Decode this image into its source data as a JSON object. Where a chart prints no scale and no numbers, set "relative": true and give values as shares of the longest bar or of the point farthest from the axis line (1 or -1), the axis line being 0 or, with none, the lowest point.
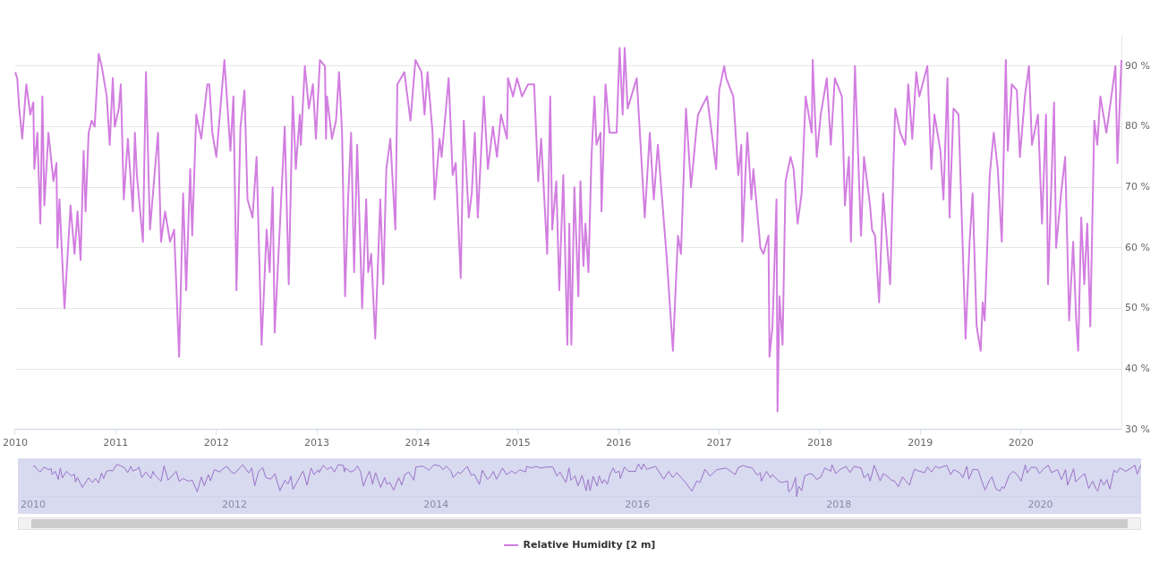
{
  "chart_data": [
    {
      "type": "line",
      "xlim": [
        2010,
        2021
      ],
      "xticks": [
        2010,
        2011,
        2012,
        2013,
        2014,
        2015,
        2016,
        2017,
        2018,
        2019,
        2020
      ],
      "ylim": [
        30,
        95
      ],
      "yticks": [
        {
          "value": 30,
          "label": "30 %"
        },
        {
          "value": 40,
          "label": "40 %"
        },
        {
          "value": 50,
          "label": "50 %"
        },
        {
          "value": 60,
          "label": "60 %"
        },
        {
          "value": 70,
          "label": "70 %"
        },
        {
          "value": 80,
          "label": "80 %"
        },
        {
          "value": 90,
          "label": "90 %"
        }
      ],
      "grid": "y",
      "legend": "bottom",
      "x": [
        2010.0,
        2010.02,
        2010.04,
        2010.07,
        2010.11,
        2010.15,
        2010.18,
        2010.19,
        2010.22,
        2010.25,
        2010.27,
        2010.29,
        2010.33,
        2010.38,
        2010.41,
        2010.42,
        2010.44,
        2010.49,
        2010.55,
        2010.59,
        2010.62,
        2010.65,
        2010.68,
        2010.7,
        2010.73,
        2010.76,
        2010.79,
        2010.83,
        2010.86,
        2010.91,
        2010.94,
        2010.97,
        2010.99,
        2011.03,
        2011.05,
        2011.08,
        2011.12,
        2011.17,
        2011.19,
        2011.21,
        2011.27,
        2011.3,
        2011.34,
        2011.42,
        2011.45,
        2011.49,
        2011.54,
        2011.58,
        2011.63,
        2011.67,
        2011.7,
        2011.74,
        2011.76,
        2011.8,
        2011.85,
        2011.91,
        2011.93,
        2011.96,
        2012.0,
        2012.08,
        2012.14,
        2012.17,
        2012.2,
        2012.24,
        2012.28,
        2012.31,
        2012.36,
        2012.4,
        2012.45,
        2012.5,
        2012.53,
        2012.56,
        2012.58,
        2012.68,
        2012.72,
        2012.76,
        2012.79,
        2012.83,
        2012.84,
        2012.88,
        2012.92,
        2012.96,
        2012.99,
        2013.03,
        2013.08,
        2013.09,
        2013.1,
        2013.15,
        2013.19,
        2013.22,
        2013.25,
        2013.28,
        2013.31,
        2013.34,
        2013.37,
        2013.4,
        2013.45,
        2013.49,
        2013.51,
        2013.54,
        2013.58,
        2013.63,
        2013.66,
        2013.69,
        2013.73,
        2013.78,
        2013.8,
        2013.87,
        2013.93,
        2013.98,
        2014.04,
        2014.07,
        2014.1,
        2014.15,
        2014.17,
        2014.22,
        2014.24,
        2014.31,
        2014.35,
        2014.38,
        2014.43,
        2014.46,
        2014.51,
        2014.54,
        2014.57,
        2014.6,
        2014.66,
        2014.7,
        2014.75,
        2014.79,
        2014.83,
        2014.89,
        2014.9,
        2014.95,
        2014.99,
        2015.04,
        2015.1,
        2015.16,
        2015.2,
        2015.23,
        2015.29,
        2015.32,
        2015.34,
        2015.38,
        2015.41,
        2015.45,
        2015.49,
        2015.51,
        2015.53,
        2015.56,
        2015.6,
        2015.62,
        2015.65,
        2015.67,
        2015.7,
        2015.73,
        2015.76,
        2015.78,
        2015.82,
        2015.83,
        2015.87,
        2015.91,
        2015.98,
        2016.01,
        2016.04,
        2016.06,
        2016.09,
        2016.18,
        2016.26,
        2016.31,
        2016.35,
        2016.39,
        2016.48,
        2016.54,
        2016.59,
        2016.62,
        2016.67,
        2016.72,
        2016.77,
        2016.79,
        2016.88,
        2016.97,
        2017.0,
        2017.05,
        2017.07,
        2017.14,
        2017.19,
        2017.22,
        2017.23,
        2017.28,
        2017.32,
        2017.34,
        2017.41,
        2017.44,
        2017.49,
        2017.5,
        2017.53,
        2017.57,
        2017.58,
        2017.6,
        2017.63,
        2017.66,
        2017.71,
        2017.74,
        2017.78,
        2017.82,
        2017.86,
        2017.92,
        2017.93,
        2017.97,
        2018.01,
        2018.07,
        2018.11,
        2018.15,
        2018.22,
        2018.25,
        2018.29,
        2018.31,
        2018.35,
        2018.41,
        2018.44,
        2018.5,
        2018.52,
        2018.55,
        2018.59,
        2018.63,
        2018.7,
        2018.73,
        2018.75,
        2018.8,
        2018.85,
        2018.88,
        2018.92,
        2018.96,
        2018.99,
        2019.07,
        2019.11,
        2019.14,
        2019.2,
        2019.23,
        2019.27,
        2019.29,
        2019.33,
        2019.38,
        2019.45,
        2019.49,
        2019.52,
        2019.56,
        2019.6,
        2019.62,
        2019.64,
        2019.69,
        2019.73,
        2019.77,
        2019.81,
        2019.85,
        2019.87,
        2019.91,
        2019.96,
        2019.99,
        2020.04,
        2020.08,
        2020.11,
        2020.17,
        2020.21,
        2020.25,
        2020.27,
        2020.33,
        2020.35,
        2020.4,
        2020.44,
        2020.48,
        2020.52,
        2020.55,
        2020.57,
        2020.6,
        2020.63,
        2020.66,
        2020.69,
        2020.73,
        2020.76,
        2020.79,
        2020.85,
        2020.9,
        2020.94,
        2020.96,
        2021.0
      ],
      "series": [
        {
          "name": "Relative Humidity [2 m]",
          "color": "#d27ee0",
          "values": [
            89,
            88,
            83,
            78,
            87,
            82,
            84,
            73,
            79,
            64,
            85,
            67,
            79,
            71,
            74,
            60,
            68,
            50,
            67,
            59,
            66,
            58,
            76,
            66,
            79,
            81,
            80,
            92,
            90,
            85,
            77,
            88,
            80,
            83,
            87,
            68,
            78,
            66,
            79,
            72,
            61,
            89,
            63,
            79,
            61,
            66,
            61,
            63,
            42,
            69,
            53,
            73,
            62,
            82,
            78,
            87,
            87,
            79,
            75,
            91,
            76,
            85,
            53,
            80,
            86,
            68,
            65,
            75,
            44,
            63,
            56,
            70,
            46,
            80,
            54,
            85,
            73,
            82,
            77,
            90,
            83,
            87,
            78,
            91,
            90,
            78,
            85,
            78,
            81,
            89,
            79,
            52,
            68,
            79,
            56,
            77,
            50,
            68,
            56,
            59,
            45,
            68,
            54,
            73,
            78,
            63,
            87,
            89,
            81,
            91,
            89,
            82,
            89,
            79,
            68,
            78,
            75,
            88,
            72,
            74,
            55,
            81,
            65,
            69,
            79,
            65,
            85,
            73,
            80,
            75,
            82,
            78,
            88,
            85,
            88,
            85,
            87,
            87,
            71,
            78,
            59,
            85,
            63,
            71,
            53,
            72,
            44,
            64,
            44,
            70,
            52,
            71,
            57,
            64,
            56,
            75,
            85,
            77,
            79,
            66,
            87,
            79,
            79,
            93,
            82,
            93,
            83,
            88,
            65,
            79,
            68,
            77,
            58,
            43,
            62,
            59,
            83,
            70,
            79,
            82,
            85,
            73,
            86,
            90,
            88,
            85,
            72,
            77,
            61,
            79,
            68,
            73,
            60,
            59,
            62,
            42,
            47,
            68,
            33,
            52,
            44,
            71,
            75,
            73,
            64,
            69,
            85,
            79,
            91,
            75,
            82,
            88,
            77,
            88,
            85,
            67,
            75,
            61,
            90,
            62,
            75,
            67,
            63,
            62,
            51,
            69,
            54,
            72,
            83,
            79,
            77,
            87,
            78,
            89,
            85,
            90,
            73,
            82,
            76,
            68,
            88,
            65,
            83,
            82,
            45,
            61,
            69,
            47,
            43,
            51,
            48,
            72,
            79,
            73,
            61,
            91,
            76,
            87,
            86,
            75,
            85,
            90,
            77,
            82,
            64,
            82,
            54,
            84,
            60,
            69,
            75,
            48,
            61,
            48,
            43,
            65,
            54,
            64,
            47,
            81,
            77,
            85,
            79,
            85,
            90,
            74,
            91
          ]
        }
      ]
    },
    {
      "type": "line",
      "xlim": [
        2010,
        2021
      ],
      "xticks": [
        2010,
        2012,
        2014,
        2016,
        2018,
        2020
      ],
      "relative": true,
      "tick_labels": "x",
      "x": [
        2010.0,
        2010.02,
        2010.04,
        2010.07,
        2010.11,
        2010.15,
        2010.18,
        2010.19,
        2010.22,
        2010.25,
        2010.27,
        2010.29,
        2010.33,
        2010.38,
        2010.41,
        2010.42,
        2010.44,
        2010.49,
        2010.55,
        2010.59,
        2010.62,
        2010.65,
        2010.68,
        2010.7,
        2010.73,
        2010.76,
        2010.79,
        2010.83,
        2010.86,
        2010.91,
        2010.94,
        2010.97,
        2010.99,
        2011.03,
        2011.05,
        2011.08,
        2011.12,
        2011.17,
        2011.19,
        2011.21,
        2011.27,
        2011.3,
        2011.34,
        2011.42,
        2011.45,
        2011.49,
        2011.54,
        2011.58,
        2011.63,
        2011.67,
        2011.7,
        2011.74,
        2011.76,
        2011.8,
        2011.85,
        2011.91,
        2011.93,
        2011.96,
        2012.0,
        2012.08,
        2012.14,
        2012.17,
        2012.2,
        2012.24,
        2012.28,
        2012.31,
        2012.36,
        2012.4,
        2012.45,
        2012.5,
        2012.53,
        2012.56,
        2012.58,
        2012.68,
        2012.72,
        2012.76,
        2012.79,
        2012.83,
        2012.84,
        2012.88,
        2012.92,
        2012.96,
        2012.99,
        2013.03,
        2013.08,
        2013.09,
        2013.1,
        2013.15,
        2013.19,
        2013.22,
        2013.25,
        2013.28,
        2013.31,
        2013.34,
        2013.37,
        2013.4,
        2013.45,
        2013.49,
        2013.51,
        2013.54,
        2013.58,
        2013.63,
        2013.66,
        2013.69,
        2013.73,
        2013.78,
        2013.8,
        2013.87,
        2013.93,
        2013.98,
        2014.04,
        2014.07,
        2014.1,
        2014.15,
        2014.17,
        2014.22,
        2014.24,
        2014.31,
        2014.35,
        2014.38,
        2014.43,
        2014.46,
        2014.51,
        2014.54,
        2014.57,
        2014.6,
        2014.66,
        2014.7,
        2014.75,
        2014.79,
        2014.83,
        2014.89,
        2014.9,
        2014.95,
        2014.99,
        2015.04,
        2015.1,
        2015.16,
        2015.2,
        2015.23,
        2015.29,
        2015.32,
        2015.34,
        2015.38,
        2015.41,
        2015.45,
        2015.49,
        2015.51,
        2015.53,
        2015.56,
        2015.6,
        2015.62,
        2015.65,
        2015.67,
        2015.7,
        2015.73,
        2015.76,
        2015.78,
        2015.82,
        2015.83,
        2015.87,
        2015.91,
        2015.98,
        2016.01,
        2016.04,
        2016.06,
        2016.09,
        2016.18,
        2016.26,
        2016.31,
        2016.35,
        2016.39,
        2016.48,
        2016.54,
        2016.59,
        2016.62,
        2016.67,
        2016.72,
        2016.77,
        2016.79,
        2016.88,
        2016.97,
        2017.0,
        2017.05,
        2017.07,
        2017.14,
        2017.19,
        2017.22,
        2017.23,
        2017.28,
        2017.32,
        2017.34,
        2017.41,
        2017.44,
        2017.49,
        2017.5,
        2017.53,
        2017.57,
        2017.58,
        2017.6,
        2017.63,
        2017.66,
        2017.71,
        2017.74,
        2017.78,
        2017.82,
        2017.86,
        2017.92,
        2017.93,
        2017.97,
        2018.01,
        2018.07,
        2018.11,
        2018.15,
        2018.22,
        2018.25,
        2018.29,
        2018.31,
        2018.35,
        2018.41,
        2018.44,
        2018.5,
        2018.52,
        2018.55,
        2018.59,
        2018.63,
        2018.7,
        2018.73,
        2018.75,
        2018.8,
        2018.85,
        2018.88,
        2018.92,
        2018.96,
        2018.99,
        2019.07,
        2019.11,
        2019.14,
        2019.2,
        2019.23,
        2019.27,
        2019.29,
        2019.33,
        2019.38,
        2019.45,
        2019.49,
        2019.52,
        2019.56,
        2019.6,
        2019.62,
        2019.64,
        2019.69,
        2019.73,
        2019.77,
        2019.81,
        2019.85,
        2019.87,
        2019.91,
        2019.96,
        2019.99,
        2020.04,
        2020.08,
        2020.11,
        2020.17,
        2020.21,
        2020.25,
        2020.27,
        2020.33,
        2020.35,
        2020.4,
        2020.44,
        2020.48,
        2020.52,
        2020.55,
        2020.57,
        2020.6,
        2020.63,
        2020.66,
        2020.69,
        2020.73,
        2020.76,
        2020.79,
        2020.85,
        2020.9,
        2020.94,
        2020.96,
        2021.0
      ],
      "series": [
        {
          "color": "#9a72c8",
          "values": [
            0.93,
            0.92,
            0.83,
            0.75,
            0.9,
            0.82,
            0.85,
            0.67,
            0.77,
            0.52,
            0.87,
            0.57,
            0.77,
            0.63,
            0.68,
            0.45,
            0.58,
            0.28,
            0.57,
            0.43,
            0.55,
            0.42,
            0.72,
            0.55,
            0.77,
            0.8,
            0.78,
            0.98,
            0.95,
            0.87,
            0.73,
            0.92,
            0.78,
            0.83,
            0.9,
            0.58,
            0.75,
            0.55,
            0.77,
            0.65,
            0.47,
            0.93,
            0.5,
            0.77,
            0.47,
            0.55,
            0.47,
            0.5,
            0.15,
            0.6,
            0.33,
            0.67,
            0.48,
            0.82,
            0.75,
            0.9,
            0.9,
            0.77,
            0.7,
            0.97,
            0.72,
            0.87,
            0.33,
            0.78,
            0.88,
            0.58,
            0.53,
            0.7,
            0.18,
            0.5,
            0.38,
            0.62,
            0.22,
            0.78,
            0.35,
            0.87,
            0.67,
            0.82,
            0.73,
            0.95,
            0.83,
            0.9,
            0.75,
            0.97,
            0.95,
            0.75,
            0.87,
            0.75,
            0.8,
            0.93,
            0.77,
            0.32,
            0.58,
            0.77,
            0.38,
            0.73,
            0.28,
            0.58,
            0.38,
            0.43,
            0.2,
            0.58,
            0.35,
            0.67,
            0.75,
            0.5,
            0.9,
            0.93,
            0.8,
            0.97,
            0.93,
            0.82,
            0.93,
            0.77,
            0.58,
            0.75,
            0.7,
            0.92,
            0.65,
            0.68,
            0.37,
            0.8,
            0.53,
            0.6,
            0.77,
            0.53,
            0.87,
            0.67,
            0.78,
            0.7,
            0.82,
            0.75,
            0.92,
            0.87,
            0.92,
            0.87,
            0.9,
            0.9,
            0.63,
            0.75,
            0.43,
            0.87,
            0.5,
            0.63,
            0.33,
            0.65,
            0.18,
            0.52,
            0.18,
            0.62,
            0.32,
            0.63,
            0.4,
            0.52,
            0.38,
            0.7,
            0.87,
            0.73,
            0.77,
            0.55,
            0.9,
            0.77,
            0.77,
            1,
            0.82,
            1,
            0.83,
            0.92,
            0.53,
            0.77,
            0.58,
            0.73,
            0.42,
            0.17,
            0.48,
            0.43,
            0.83,
            0.62,
            0.77,
            0.82,
            0.87,
            0.67,
            0.88,
            0.95,
            0.92,
            0.87,
            0.65,
            0.73,
            0.47,
            0.77,
            0.58,
            0.67,
            0.45,
            0.43,
            0.48,
            0.15,
            0.23,
            0.58,
            0,
            0.32,
            0.18,
            0.63,
            0.7,
            0.67,
            0.52,
            0.6,
            0.87,
            0.77,
            0.97,
            0.7,
            0.82,
            0.92,
            0.73,
            0.92,
            0.87,
            0.57,
            0.7,
            0.47,
            0.95,
            0.48,
            0.7,
            0.57,
            0.5,
            0.48,
            0.3,
            0.6,
            0.35,
            0.65,
            0.83,
            0.77,
            0.73,
            0.9,
            0.75,
            0.93,
            0.87,
            0.95,
            0.67,
            0.82,
            0.72,
            0.58,
            0.92,
            0.53,
            0.83,
            0.82,
            0.2,
            0.47,
            0.6,
            0.23,
            0.17,
            0.3,
            0.25,
            0.65,
            0.77,
            0.67,
            0.47,
            0.97,
            0.72,
            0.9,
            0.88,
            0.7,
            0.87,
            0.95,
            0.73,
            0.82,
            0.52,
            0.82,
            0.35,
            0.85,
            0.45,
            0.6,
            0.7,
            0.25,
            0.47,
            0.25,
            0.17,
            0.53,
            0.35,
            0.52,
            0.23,
            0.8,
            0.73,
            0.87,
            0.77,
            0.87,
            0.95,
            0.68,
            0.97
          ]
        }
      ]
    }
  ]
}
